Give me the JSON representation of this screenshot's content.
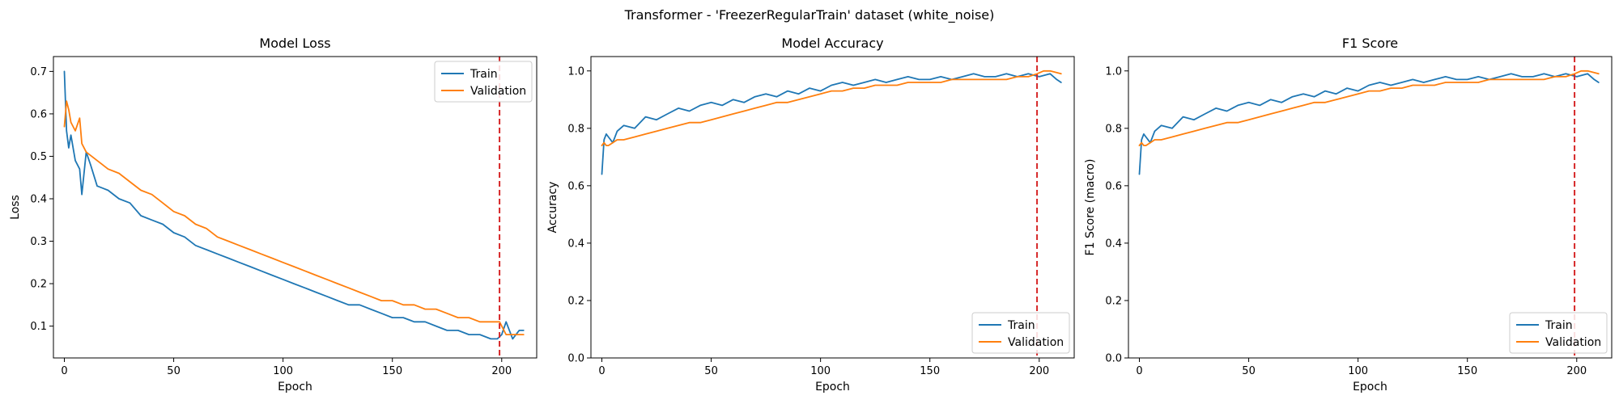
{
  "figure": {
    "suptitle": "Transformer - 'FreezerRegularTrain' dataset (white_noise)"
  },
  "colors": {
    "train": "#1f77b4",
    "validation": "#ff7f0e",
    "marker": "#d62728"
  },
  "chart_data": [
    {
      "type": "line",
      "title": "Model Loss",
      "xlabel": "Epoch",
      "ylabel": "Loss",
      "xlim": [
        -5,
        216
      ],
      "ylim": [
        0.025,
        0.735
      ],
      "xticks": [
        0,
        50,
        100,
        150,
        200
      ],
      "yticks": [
        0.1,
        0.2,
        0.3,
        0.4,
        0.5,
        0.6,
        0.7
      ],
      "ytick_decimals": 1,
      "legend_loc": "upper right",
      "vline_epoch": 199,
      "series": [
        {
          "name": "Train",
          "color_key": "train",
          "x": [
            0,
            1,
            2,
            3,
            5,
            7,
            8,
            10,
            12,
            15,
            20,
            25,
            30,
            35,
            40,
            45,
            50,
            55,
            60,
            65,
            70,
            75,
            80,
            85,
            90,
            95,
            100,
            105,
            110,
            115,
            120,
            125,
            130,
            135,
            140,
            145,
            150,
            155,
            160,
            165,
            170,
            175,
            180,
            185,
            190,
            195,
            198,
            200,
            202,
            205,
            208,
            210
          ],
          "y": [
            0.7,
            0.56,
            0.52,
            0.55,
            0.49,
            0.47,
            0.41,
            0.51,
            0.48,
            0.43,
            0.42,
            0.4,
            0.39,
            0.36,
            0.35,
            0.34,
            0.32,
            0.31,
            0.29,
            0.28,
            0.27,
            0.26,
            0.25,
            0.24,
            0.23,
            0.22,
            0.21,
            0.2,
            0.19,
            0.18,
            0.17,
            0.16,
            0.15,
            0.15,
            0.14,
            0.13,
            0.12,
            0.12,
            0.11,
            0.11,
            0.1,
            0.09,
            0.09,
            0.08,
            0.08,
            0.07,
            0.07,
            0.08,
            0.11,
            0.07,
            0.09,
            0.09
          ]
        },
        {
          "name": "Validation",
          "color_key": "validation",
          "x": [
            0,
            1,
            2,
            3,
            5,
            7,
            8,
            10,
            15,
            20,
            25,
            30,
            35,
            40,
            45,
            50,
            55,
            60,
            65,
            70,
            75,
            80,
            85,
            90,
            95,
            100,
            105,
            110,
            115,
            120,
            125,
            130,
            135,
            140,
            145,
            150,
            155,
            160,
            165,
            170,
            175,
            180,
            185,
            190,
            195,
            199,
            202,
            205,
            208,
            210
          ],
          "y": [
            0.57,
            0.63,
            0.61,
            0.58,
            0.56,
            0.59,
            0.53,
            0.51,
            0.49,
            0.47,
            0.46,
            0.44,
            0.42,
            0.41,
            0.39,
            0.37,
            0.36,
            0.34,
            0.33,
            0.31,
            0.3,
            0.29,
            0.28,
            0.27,
            0.26,
            0.25,
            0.24,
            0.23,
            0.22,
            0.21,
            0.2,
            0.19,
            0.18,
            0.17,
            0.16,
            0.16,
            0.15,
            0.15,
            0.14,
            0.14,
            0.13,
            0.12,
            0.12,
            0.11,
            0.11,
            0.11,
            0.08,
            0.08,
            0.08,
            0.08
          ]
        }
      ]
    },
    {
      "type": "line",
      "title": "Model Accuracy",
      "xlabel": "Epoch",
      "ylabel": "Accuracy",
      "xlim": [
        -5,
        216
      ],
      "ylim": [
        0.0,
        1.05
      ],
      "xticks": [
        0,
        50,
        100,
        150,
        200
      ],
      "yticks": [
        0.0,
        0.2,
        0.4,
        0.6,
        0.8,
        1.0
      ],
      "ytick_decimals": 1,
      "legend_loc": "lower right",
      "vline_epoch": 199,
      "series": [
        {
          "name": "Train",
          "color_key": "train",
          "x": [
            0,
            1,
            2,
            3,
            5,
            7,
            10,
            15,
            20,
            25,
            30,
            35,
            40,
            45,
            50,
            55,
            60,
            65,
            70,
            75,
            80,
            85,
            90,
            95,
            100,
            105,
            110,
            115,
            120,
            125,
            130,
            135,
            140,
            145,
            150,
            155,
            160,
            165,
            170,
            175,
            180,
            185,
            190,
            195,
            200,
            205,
            208,
            210
          ],
          "y": [
            0.64,
            0.76,
            0.78,
            0.77,
            0.75,
            0.79,
            0.81,
            0.8,
            0.84,
            0.83,
            0.85,
            0.87,
            0.86,
            0.88,
            0.89,
            0.88,
            0.9,
            0.89,
            0.91,
            0.92,
            0.91,
            0.93,
            0.92,
            0.94,
            0.93,
            0.95,
            0.96,
            0.95,
            0.96,
            0.97,
            0.96,
            0.97,
            0.98,
            0.97,
            0.97,
            0.98,
            0.97,
            0.98,
            0.99,
            0.98,
            0.98,
            0.99,
            0.98,
            0.99,
            0.98,
            0.99,
            0.97,
            0.96
          ]
        },
        {
          "name": "Validation",
          "color_key": "validation",
          "x": [
            0,
            1,
            2,
            3,
            5,
            7,
            10,
            15,
            20,
            25,
            30,
            35,
            40,
            45,
            50,
            55,
            60,
            65,
            70,
            75,
            80,
            85,
            90,
            95,
            100,
            105,
            110,
            115,
            120,
            125,
            130,
            135,
            140,
            145,
            150,
            155,
            160,
            165,
            170,
            175,
            180,
            185,
            190,
            195,
            199,
            202,
            205,
            210
          ],
          "y": [
            0.74,
            0.75,
            0.74,
            0.74,
            0.75,
            0.76,
            0.76,
            0.77,
            0.78,
            0.79,
            0.8,
            0.81,
            0.82,
            0.82,
            0.83,
            0.84,
            0.85,
            0.86,
            0.87,
            0.88,
            0.89,
            0.89,
            0.9,
            0.91,
            0.92,
            0.93,
            0.93,
            0.94,
            0.94,
            0.95,
            0.95,
            0.95,
            0.96,
            0.96,
            0.96,
            0.96,
            0.97,
            0.97,
            0.97,
            0.97,
            0.97,
            0.97,
            0.98,
            0.98,
            0.99,
            1.0,
            1.0,
            0.99
          ]
        }
      ]
    },
    {
      "type": "line",
      "title": "F1 Score",
      "xlabel": "Epoch",
      "ylabel": "F1 Score (macro)",
      "xlim": [
        -5,
        216
      ],
      "ylim": [
        0.0,
        1.05
      ],
      "xticks": [
        0,
        50,
        100,
        150,
        200
      ],
      "yticks": [
        0.0,
        0.2,
        0.4,
        0.6,
        0.8,
        1.0
      ],
      "ytick_decimals": 1,
      "legend_loc": "lower right",
      "vline_epoch": 199,
      "series": [
        {
          "name": "Train",
          "color_key": "train",
          "x": [
            0,
            1,
            2,
            3,
            5,
            7,
            10,
            15,
            20,
            25,
            30,
            35,
            40,
            45,
            50,
            55,
            60,
            65,
            70,
            75,
            80,
            85,
            90,
            95,
            100,
            105,
            110,
            115,
            120,
            125,
            130,
            135,
            140,
            145,
            150,
            155,
            160,
            165,
            170,
            175,
            180,
            185,
            190,
            195,
            200,
            205,
            208,
            210
          ],
          "y": [
            0.64,
            0.76,
            0.78,
            0.77,
            0.75,
            0.79,
            0.81,
            0.8,
            0.84,
            0.83,
            0.85,
            0.87,
            0.86,
            0.88,
            0.89,
            0.88,
            0.9,
            0.89,
            0.91,
            0.92,
            0.91,
            0.93,
            0.92,
            0.94,
            0.93,
            0.95,
            0.96,
            0.95,
            0.96,
            0.97,
            0.96,
            0.97,
            0.98,
            0.97,
            0.97,
            0.98,
            0.97,
            0.98,
            0.99,
            0.98,
            0.98,
            0.99,
            0.98,
            0.99,
            0.98,
            0.99,
            0.97,
            0.96
          ]
        },
        {
          "name": "Validation",
          "color_key": "validation",
          "x": [
            0,
            1,
            2,
            3,
            5,
            7,
            10,
            15,
            20,
            25,
            30,
            35,
            40,
            45,
            50,
            55,
            60,
            65,
            70,
            75,
            80,
            85,
            90,
            95,
            100,
            105,
            110,
            115,
            120,
            125,
            130,
            135,
            140,
            145,
            150,
            155,
            160,
            165,
            170,
            175,
            180,
            185,
            190,
            195,
            199,
            202,
            205,
            210
          ],
          "y": [
            0.74,
            0.75,
            0.74,
            0.74,
            0.75,
            0.76,
            0.76,
            0.77,
            0.78,
            0.79,
            0.8,
            0.81,
            0.82,
            0.82,
            0.83,
            0.84,
            0.85,
            0.86,
            0.87,
            0.88,
            0.89,
            0.89,
            0.9,
            0.91,
            0.92,
            0.93,
            0.93,
            0.94,
            0.94,
            0.95,
            0.95,
            0.95,
            0.96,
            0.96,
            0.96,
            0.96,
            0.97,
            0.97,
            0.97,
            0.97,
            0.97,
            0.97,
            0.98,
            0.98,
            0.99,
            1.0,
            1.0,
            0.99
          ]
        }
      ]
    }
  ]
}
